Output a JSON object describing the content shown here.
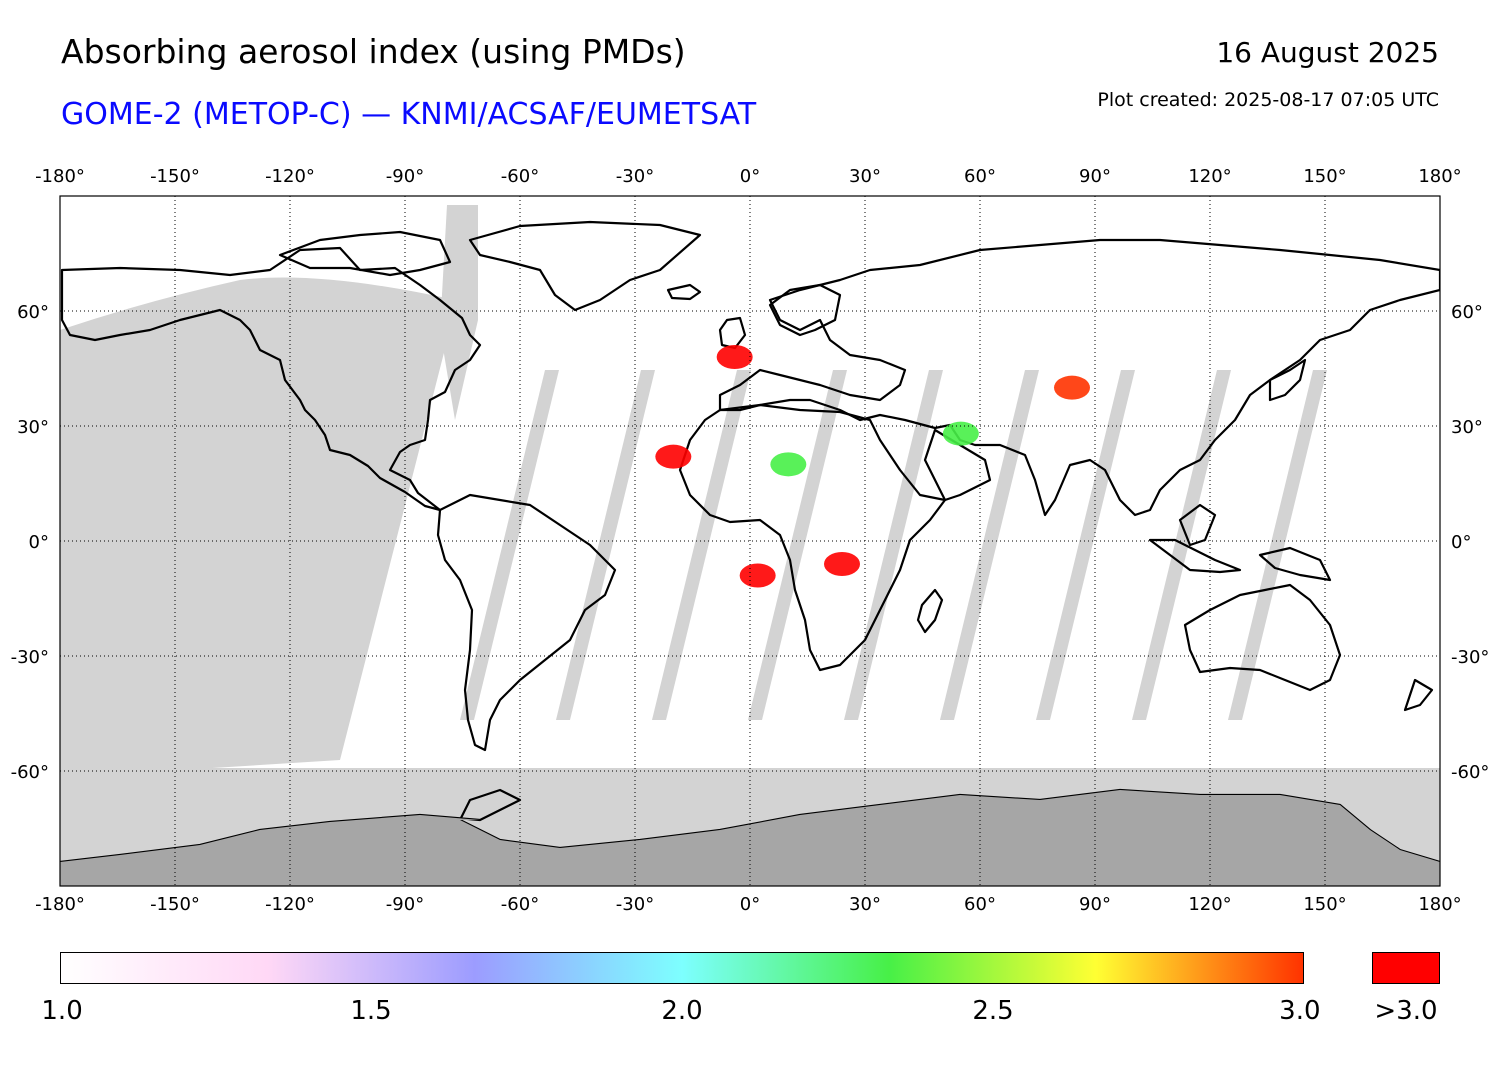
{
  "header": {
    "title": "Absorbing aerosol index (using PMDs)",
    "subtitle": "GOME-2 (METOP-C) — KNMI/ACSAF/EUMETSAT",
    "date": "16 August 2025",
    "created": "Plot created: 2025-08-17 07:05 UTC"
  },
  "map": {
    "lon_ticks": [
      "-180°",
      "-150°",
      "-120°",
      "-90°",
      "-60°",
      "-30°",
      "0°",
      "30°",
      "60°",
      "90°",
      "120°",
      "150°",
      "180°"
    ],
    "lat_ticks": [
      "60°",
      "30°",
      "0°",
      "-30°",
      "-60°"
    ],
    "lon_values": [
      -180,
      -150,
      -120,
      -90,
      -60,
      -30,
      0,
      30,
      60,
      90,
      120,
      150,
      180
    ],
    "lat_values": [
      60,
      30,
      0,
      -30,
      -60
    ],
    "lon_range": [
      -180,
      180
    ],
    "lat_range": [
      -90,
      90
    ],
    "projection": "equirectangular",
    "grid": "dotted",
    "colors": {
      "no_data": "#d3d3d3",
      "land_no_data": "#a6a6a6",
      "coast": "#000000"
    },
    "hotspots": [
      {
        "name": "canary-plume",
        "lon": -20,
        "lat": 22,
        "level": 3.2
      },
      {
        "name": "iberia-plume",
        "lon": -4,
        "lat": 48,
        "level": 3.2
      },
      {
        "name": "angola-plume",
        "lon": 2,
        "lat": -9,
        "level": 3.2
      },
      {
        "name": "congo-plume",
        "lon": 24,
        "lat": -6,
        "level": 3.2
      },
      {
        "name": "sahara-band",
        "lon": 10,
        "lat": 20,
        "level": 2.3
      },
      {
        "name": "arabia-band",
        "lon": 55,
        "lat": 28,
        "level": 2.4
      },
      {
        "name": "himalaya-band",
        "lon": 84,
        "lat": 40,
        "level": 3.0
      }
    ]
  },
  "colorbar": {
    "ticks": [
      "1.0",
      "1.5",
      "2.0",
      "2.5",
      "3.0"
    ],
    "tick_values": [
      1.0,
      1.5,
      2.0,
      2.5,
      3.0
    ],
    "range": [
      1.0,
      3.0
    ],
    "over_label": ">3.0",
    "over_color": "#ff0000",
    "stops": [
      "#ffffff",
      "#ffd8f6",
      "#9c9cff",
      "#7dffff",
      "#47f047",
      "#ffff33",
      "#ff3300"
    ]
  }
}
